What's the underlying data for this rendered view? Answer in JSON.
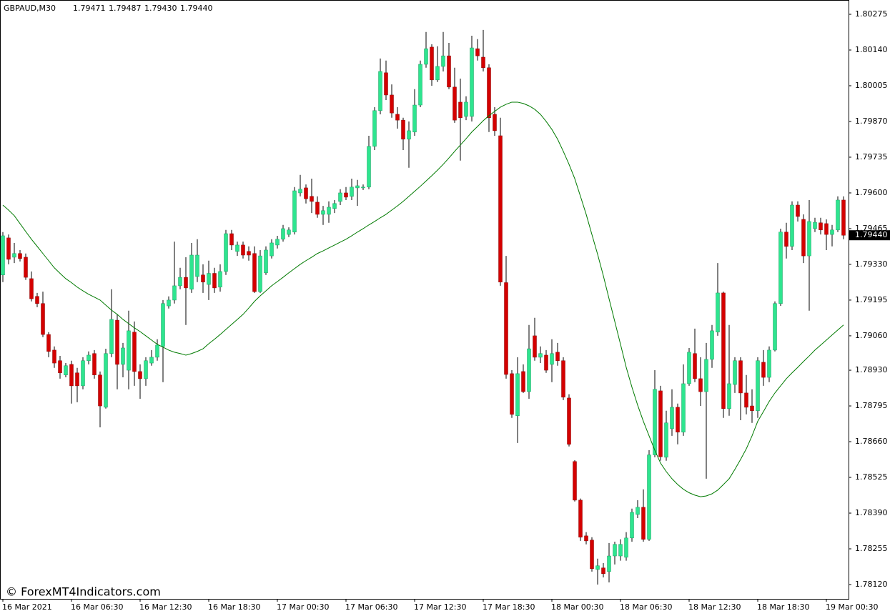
{
  "chart_data": {
    "type": "candlestick",
    "title": "GBPAUD,M30",
    "title_values": [
      "1.79471",
      "1.79487",
      "1.79430",
      "1.79440"
    ],
    "watermark": "© ForexMT4Indicators.com",
    "up_color": "#2ee58f",
    "down_color": "#d40000",
    "wick_color": "#000000",
    "line_color": "#007a00",
    "ylim": [
      1.78066,
      1.80329
    ],
    "yticks": [
      1.80275,
      {
        "value": 1.8014,
        "label": "1.80140"
      },
      1.80005,
      {
        "value": 1.7987,
        "label": "1.79870"
      },
      1.79735,
      {
        "value": 1.796,
        "label": "1.79600"
      },
      1.79465,
      {
        "value": 1.7933,
        "label": "1.79330"
      },
      1.79195,
      {
        "value": 1.7906,
        "label": "1.79060"
      },
      {
        "value": 1.7893,
        "label": "1.78930"
      },
      1.78795,
      {
        "value": 1.7866,
        "label": "1.78660"
      },
      1.78525,
      {
        "value": 1.7839,
        "label": "1.78390"
      },
      1.78255,
      {
        "value": 1.7812,
        "label": "1.78120"
      }
    ],
    "current_price": {
      "value": 1.7944,
      "label": "1.79440"
    },
    "categories": [
      "16 Mar 2021",
      null,
      null,
      null,
      null,
      null,
      null,
      null,
      null,
      null,
      null,
      null,
      "16 Mar 06:30",
      null,
      null,
      null,
      null,
      null,
      null,
      null,
      null,
      null,
      null,
      null,
      "16 Mar 12:30",
      null,
      null,
      null,
      null,
      null,
      null,
      null,
      null,
      null,
      null,
      null,
      "16 Mar 18:30",
      null,
      null,
      null,
      null,
      null,
      null,
      null,
      null,
      null,
      null,
      null,
      "17 Mar 00:30",
      null,
      null,
      null,
      null,
      null,
      null,
      null,
      null,
      null,
      null,
      null,
      "17 Mar 06:30",
      null,
      null,
      null,
      null,
      null,
      null,
      null,
      null,
      null,
      null,
      null,
      "17 Mar 12:30",
      null,
      null,
      null,
      null,
      null,
      null,
      null,
      null,
      null,
      null,
      null,
      "17 Mar 18:30",
      null,
      null,
      null,
      null,
      null,
      null,
      null,
      null,
      null,
      null,
      null,
      "18 Mar 00:30",
      null,
      null,
      null,
      null,
      null,
      null,
      null,
      null,
      null,
      null,
      null,
      "18 Mar 06:30",
      null,
      null,
      null,
      null,
      null,
      null,
      null,
      null,
      null,
      null,
      null,
      "18 Mar 12:30",
      null,
      null,
      null,
      null,
      null,
      null,
      null,
      null,
      null,
      null,
      null,
      "18 Mar 18:30",
      null,
      null,
      null,
      null,
      null,
      null,
      null,
      null,
      null,
      null,
      null,
      "19 Mar 00:30",
      null,
      null,
      null
    ],
    "open": [
      1.7929,
      1.7943,
      1.79357,
      1.79371,
      1.79357,
      1.79276,
      1.79209,
      1.79182,
      1.79065,
      1.79006,
      1.78966,
      1.78912,
      1.78952,
      1.7892,
      1.78871,
      1.78966,
      1.78993,
      1.78912,
      1.7879,
      1.78993,
      1.79119,
      1.78952,
      1.7893,
      1.79074,
      1.78925,
      1.78898,
      1.78957,
      1.78979,
      1.7902,
      1.79173,
      1.79195,
      1.79249,
      1.79281,
      1.79236,
      1.79284,
      1.7929,
      1.79254,
      1.79296,
      1.79244,
      1.79303,
      1.79446,
      1.79379,
      1.79403,
      1.79379,
      1.79371,
      1.79227,
      1.79298,
      1.79362,
      1.79403,
      1.79425,
      1.79443,
      1.79452,
      1.796,
      1.79619,
      1.79587,
      1.79565,
      1.79519,
      1.79519,
      1.79541,
      1.79568,
      1.796,
      1.79587,
      1.79619,
      1.79619,
      1.79622,
      1.79776,
      1.79911,
      1.80054,
      1.7997,
      1.79897,
      1.79875,
      1.79803,
      1.7983,
      1.79932,
      1.80086,
      1.80151,
      1.80027,
      1.80078,
      1.80118,
      1.8,
      1.79943,
      1.79889,
      1.79889,
      1.80145,
      1.80113,
      1.80073,
      1.79897,
      1.79816,
      1.79261,
      1.78917,
      1.78758,
      1.78925,
      1.78849,
      1.7906,
      1.78979,
      1.78987,
      1.78952,
      1.78998,
      1.78966,
      1.78825,
      1.78585,
      1.78439,
      1.78304,
      1.78288,
      1.78177,
      1.78183,
      1.78169,
      1.78228,
      1.78228,
      1.78223,
      1.78296,
      1.78385,
      1.78412,
      1.78291,
      1.7861,
      1.78852,
      1.78601,
      1.78709,
      1.7879,
      1.78696,
      1.78879,
      1.78993,
      1.78898,
      1.78849,
      1.78971,
      1.79074,
      1.79222,
      1.78785,
      1.78876,
      1.78966,
      1.78844,
      1.78795,
      1.78777,
      1.7896,
      1.78903,
      1.79006,
      1.79182,
      1.79452,
      1.79398,
      1.79554,
      1.795,
      1.79362,
      1.79465,
      1.79487,
      1.79484,
      1.79443,
      1.7946,
      1.79573
    ],
    "high": [
      1.79452,
      1.79443,
      1.79411,
      1.79384,
      1.79371,
      1.79303,
      1.79222,
      1.79227,
      1.79074,
      1.7902,
      1.78984,
      1.78957,
      1.78966,
      1.78939,
      1.78979,
      1.79001,
      1.79006,
      1.78925,
      1.79011,
      1.79236,
      1.79141,
      1.79033,
      1.79155,
      1.79114,
      1.78952,
      1.78979,
      1.79006,
      1.79047,
      1.79195,
      1.79209,
      1.79416,
      1.79317,
      1.79357,
      1.79411,
      1.79425,
      1.7933,
      1.79344,
      1.79317,
      1.7933,
      1.7946,
      1.7946,
      1.79416,
      1.79416,
      1.79398,
      1.79398,
      1.79384,
      1.79398,
      1.79425,
      1.79438,
      1.79479,
      1.7947,
      1.79622,
      1.79668,
      1.79632,
      1.79654,
      1.79587,
      1.79551,
      1.79568,
      1.79573,
      1.79614,
      1.79622,
      1.79654,
      1.79649,
      1.79632,
      1.79816,
      1.79924,
      1.80108,
      1.801,
      1.8001,
      1.79924,
      1.79884,
      1.7987,
      1.79992,
      1.801,
      1.80208,
      1.80162,
      1.80154,
      1.80208,
      1.80167,
      1.80073,
      1.80032,
      1.79965,
      1.80194,
      1.80181,
      1.80216,
      1.80086,
      1.79924,
      1.79884,
      1.79362,
      1.7893,
      1.78979,
      1.78952,
      1.79101,
      1.79128,
      1.7902,
      1.79006,
      1.79047,
      1.79033,
      1.78979,
      1.78839,
      1.7859,
      1.78445,
      1.78318,
      1.78299,
      1.78218,
      1.78201,
      1.78277,
      1.78282,
      1.78291,
      1.78318,
      1.78407,
      1.78439,
      1.7848,
      1.78628,
      1.7893,
      1.78871,
      1.78777,
      1.78858,
      1.78804,
      1.78952,
      1.79014,
      1.79087,
      1.78979,
      1.79033,
      1.79101,
      1.79335,
      1.79227,
      1.79101,
      1.78979,
      1.78979,
      1.78912,
      1.78858,
      1.78979,
      1.79006,
      1.7902,
      1.7919,
      1.79465,
      1.79487,
      1.79568,
      1.79568,
      1.79519,
      1.79573,
      1.79506,
      1.79506,
      1.795,
      1.79479,
      1.79587,
      1.79587
    ],
    "low": [
      1.79263,
      1.7933,
      1.79335,
      1.79341,
      1.79271,
      1.7919,
      1.79168,
      1.79055,
      1.78979,
      1.78939,
      1.78898,
      1.78903,
      1.78804,
      1.78809,
      1.78858,
      1.78952,
      1.78898,
      1.78714,
      1.78785,
      1.78979,
      1.78858,
      1.78903,
      1.78858,
      1.78871,
      1.78822,
      1.78871,
      1.78947,
      1.78966,
      1.78885,
      1.79163,
      1.79182,
      1.79236,
      1.79101,
      1.79222,
      1.79263,
      1.79222,
      1.79195,
      1.79222,
      1.79227,
      1.7929,
      1.79384,
      1.79362,
      1.79352,
      1.79344,
      1.79222,
      1.79222,
      1.7929,
      1.79352,
      1.7939,
      1.79416,
      1.79433,
      1.79443,
      1.79587,
      1.7956,
      1.79524,
      1.79506,
      1.79479,
      1.79487,
      1.79524,
      1.79554,
      1.79573,
      1.79573,
      1.79551,
      1.79611,
      1.79614,
      1.79762,
      1.79897,
      1.79951,
      1.79884,
      1.79843,
      1.79762,
      1.79695,
      1.79816,
      1.79924,
      1.80073,
      1.80005,
      1.80019,
      1.80059,
      1.79992,
      1.79865,
      1.79722,
      1.79875,
      1.7987,
      1.801,
      1.80059,
      1.7983,
      1.79816,
      1.79249,
      1.78898,
      1.7875,
      1.78655,
      1.78844,
      1.78822,
      1.78966,
      1.78957,
      1.7892,
      1.78885,
      1.78947,
      1.78817,
      1.78642,
      1.78434,
      1.78285,
      1.78272,
      1.78169,
      1.7812,
      1.78147,
      1.78128,
      1.78196,
      1.7821,
      1.7821,
      1.78282,
      1.78371,
      1.78282,
      1.78285,
      1.78601,
      1.78588,
      1.78588,
      1.78682,
      1.7865,
      1.78682,
      1.78871,
      1.78885,
      1.78795,
      1.7852,
      1.78939,
      1.7906,
      1.7875,
      1.78758,
      1.78844,
      1.78741,
      1.78763,
      1.78731,
      1.7875,
      1.78871,
      1.78885,
      1.79001,
      1.79173,
      1.79352,
      1.79384,
      1.79492,
      1.79335,
      1.79155,
      1.79452,
      1.79443,
      1.79384,
      1.79398,
      1.79452,
      1.79425
    ],
    "close": [
      1.79438,
      1.79349,
      1.79371,
      1.79352,
      1.79281,
      1.792,
      1.79182,
      1.79065,
      1.79001,
      1.78957,
      1.7892,
      1.78947,
      1.78871,
      1.78871,
      1.78966,
      1.78987,
      1.78912,
      1.78795,
      1.78993,
      1.79122,
      1.78952,
      1.79014,
      1.79079,
      1.78925,
      1.78898,
      1.78966,
      1.78979,
      1.79025,
      1.79182,
      1.79195,
      1.79249,
      1.79281,
      1.79241,
      1.79365,
      1.79365,
      1.79263,
      1.79296,
      1.79241,
      1.79303,
      1.79446,
      1.79403,
      1.79403,
      1.79365,
      1.79365,
      1.79227,
      1.79362,
      1.79384,
      1.79411,
      1.79425,
      1.79465,
      1.7946,
      1.79608,
      1.79614,
      1.79578,
      1.79568,
      1.79519,
      1.79533,
      1.79546,
      1.7956,
      1.796,
      1.79584,
      1.79622,
      1.79627,
      1.79622,
      1.79776,
      1.79911,
      1.80059,
      1.7997,
      1.79902,
      1.79875,
      1.79803,
      1.79835,
      1.79932,
      1.80086,
      1.80145,
      1.80027,
      1.80078,
      1.80118,
      1.8,
      1.79875,
      1.79884,
      1.79943,
      1.80148,
      1.80118,
      1.80073,
      1.79884,
      1.79835,
      1.79263,
      1.78914,
      1.78763,
      1.78917,
      1.78849,
      1.79011,
      1.78979,
      1.78993,
      1.7893,
      1.78993,
      1.78966,
      1.78828,
      1.7865,
      1.78439,
      1.78299,
      1.78285,
      1.7818,
      1.78191,
      1.78161,
      1.78228,
      1.78272,
      1.78272,
      1.78296,
      1.78393,
      1.78412,
      1.78291,
      1.7861,
      1.78858,
      1.78603,
      1.78731,
      1.7879,
      1.78696,
      1.78879,
      1.78998,
      1.78898,
      1.78849,
      1.78971,
      1.79079,
      1.79222,
      1.78785,
      1.78879,
      1.78966,
      1.78844,
      1.7879,
      1.78777,
      1.78966,
      1.78903,
      1.79006,
      1.79182,
      1.79452,
      1.79398,
      1.79554,
      1.79511,
      1.79362,
      1.79492,
      1.79489,
      1.7946,
      1.79443,
      1.7946,
      1.79573,
      1.7944
    ],
    "line_values": [
      1.79554,
      1.79535,
      1.79514,
      1.79484,
      1.79454,
      1.79425,
      1.79398,
      1.79371,
      1.79344,
      1.79317,
      1.79296,
      1.79276,
      1.79261,
      1.79244,
      1.7923,
      1.79217,
      1.79206,
      1.79195,
      1.79176,
      1.79157,
      1.79141,
      1.79122,
      1.79106,
      1.7909,
      1.79076,
      1.7906,
      1.79044,
      1.79028,
      1.79017,
      1.79006,
      1.78998,
      1.78993,
      1.78987,
      1.78993,
      1.79001,
      1.79011,
      1.7903,
      1.79047,
      1.79065,
      1.79084,
      1.79103,
      1.79122,
      1.79141,
      1.79165,
      1.7919,
      1.79211,
      1.7923,
      1.79249,
      1.79265,
      1.79281,
      1.79298,
      1.79314,
      1.7933,
      1.79344,
      1.79357,
      1.79371,
      1.79381,
      1.79392,
      1.79403,
      1.79414,
      1.79425,
      1.79438,
      1.79452,
      1.79465,
      1.79479,
      1.79492,
      1.79506,
      1.79519,
      1.79535,
      1.79551,
      1.79568,
      1.79587,
      1.79606,
      1.79625,
      1.79645,
      1.79665,
      1.79686,
      1.79708,
      1.79732,
      1.79757,
      1.79781,
      1.79805,
      1.7983,
      1.79851,
      1.79873,
      1.79892,
      1.79908,
      1.79924,
      1.79935,
      1.79943,
      1.79943,
      1.79938,
      1.79929,
      1.79916,
      1.79897,
      1.7987,
      1.7984,
      1.79803,
      1.79757,
      1.79708,
      1.79654,
      1.79587,
      1.79519,
      1.79443,
      1.79368,
      1.79287,
      1.792,
      1.79114,
      1.79028,
      1.78941,
      1.78866,
      1.78798,
      1.78737,
      1.78682,
      1.78628,
      1.78579,
      1.78547,
      1.7852,
      1.78498,
      1.7848,
      1.78467,
      1.78458,
      1.78452,
      1.78455,
      1.78463,
      1.78477,
      1.78498,
      1.7852,
      1.78555,
      1.78593,
      1.78633,
      1.78682,
      1.78737,
      1.78774,
      1.78812,
      1.78844,
      1.78871,
      1.78898,
      1.7892,
      1.78941,
      1.78963,
      1.78984,
      1.79006,
      1.79025,
      1.79044,
      1.79063,
      1.79082,
      1.79101
    ]
  }
}
